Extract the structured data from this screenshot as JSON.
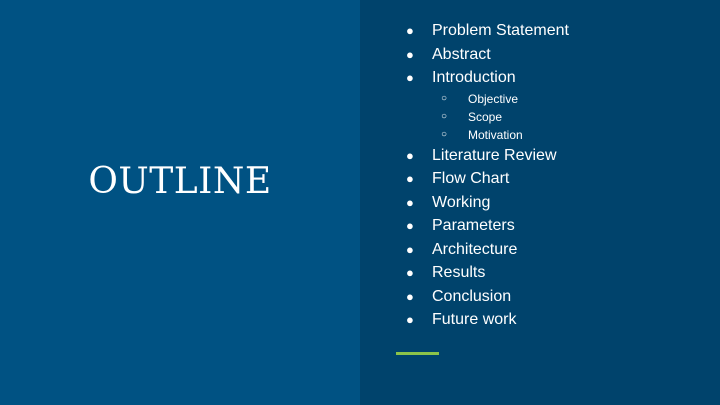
{
  "slide": {
    "title": "OUTLINE",
    "bullet_glyph": "●",
    "sub_bullet_glyph": "○",
    "accent_color": "#8bc34a",
    "left_bg": "#005283",
    "right_bg": "#00436c",
    "items": [
      {
        "label": "Problem Statement"
      },
      {
        "label": "Abstract"
      },
      {
        "label": "Introduction"
      },
      {
        "label": "Objective"
      },
      {
        "label": "Scope"
      },
      {
        "label": "Motivation"
      },
      {
        "label": "Literature Review"
      },
      {
        "label": "Flow Chart"
      },
      {
        "label": "Working"
      },
      {
        "label": "Parameters"
      },
      {
        "label": "Architecture"
      },
      {
        "label": "Results"
      },
      {
        "label": "Conclusion"
      },
      {
        "label": "Future work"
      }
    ]
  }
}
